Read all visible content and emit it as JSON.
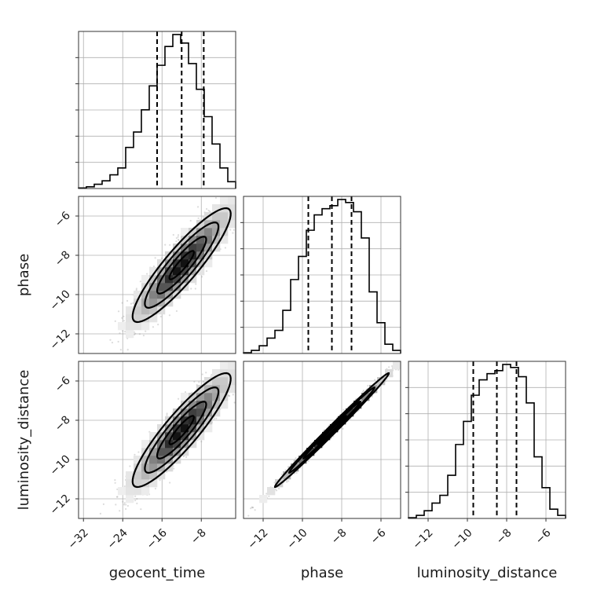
{
  "chart_data": {
    "type": "corner",
    "parameters": [
      "geocent_time",
      "phase",
      "luminosity_distance"
    ],
    "axis_labels": {
      "x": [
        "geocent_time",
        "phase",
        "luminosity_distance"
      ],
      "y": [
        "",
        "phase",
        "luminosity_distance"
      ]
    },
    "ranges": {
      "geocent_time": [
        -33,
        -1
      ],
      "phase": [
        -13,
        -5
      ],
      "luminosity_distance": [
        -13,
        -5
      ]
    },
    "ticks": {
      "geocent_time": [
        -32,
        -24,
        -16,
        -8
      ],
      "phase": [
        -12,
        -10,
        -8,
        -6
      ],
      "luminosity_distance": [
        -12,
        -10,
        -8,
        -6
      ]
    },
    "tick_labels": {
      "geocent_time": [
        "−32",
        "−24",
        "−16",
        "−8"
      ],
      "phase": [
        "−12",
        "−10",
        "−8",
        "−6"
      ],
      "luminosity_distance": [
        "−12",
        "−10",
        "−8",
        "−6"
      ]
    },
    "grid": true,
    "quantiles": {
      "geocent_time": [
        -17,
        -12,
        -7.5
      ],
      "phase": [
        -9.7,
        -8.5,
        -7.5
      ],
      "luminosity_distance": [
        -9.7,
        -8.5,
        -7.5
      ]
    },
    "histograms": {
      "geocent_time": {
        "bin_edges": [
          -33,
          -31.4,
          -29.8,
          -28.2,
          -26.6,
          -25,
          -23.4,
          -21.8,
          -20.2,
          -18.6,
          -17,
          -15.4,
          -13.8,
          -12.2,
          -10.6,
          -9,
          -7.4,
          -5.8,
          -4.2,
          -2.6,
          -1
        ],
        "counts": [
          0.3,
          1,
          2.5,
          4.5,
          8,
          12,
          24,
          33,
          46,
          60,
          72,
          83,
          90,
          85,
          73,
          58,
          42,
          26,
          12,
          4
        ]
      },
      "phase": {
        "bin_edges": [
          -13,
          -12.6,
          -12.2,
          -11.8,
          -11.4,
          -11,
          -10.6,
          -10.2,
          -9.8,
          -9.4,
          -9,
          -8.6,
          -8.2,
          -7.8,
          -7.4,
          -7,
          -6.6,
          -6.2,
          -5.8,
          -5.4,
          -5
        ],
        "counts": [
          0.5,
          2,
          5,
          10,
          15,
          28,
          48,
          63,
          80,
          90,
          94,
          96,
          100,
          98,
          92,
          75,
          40,
          20,
          6,
          2
        ]
      },
      "luminosity_distance": {
        "bin_edges": [
          -13,
          -12.6,
          -12.2,
          -11.8,
          -11.4,
          -11,
          -10.6,
          -10.2,
          -9.8,
          -9.4,
          -9,
          -8.6,
          -8.2,
          -7.8,
          -7.4,
          -7,
          -6.6,
          -6.2,
          -5.8,
          -5.4,
          -5
        ],
        "counts": [
          0.5,
          2,
          5,
          10,
          15,
          28,
          48,
          63,
          80,
          90,
          94,
          96,
          100,
          98,
          92,
          75,
          40,
          20,
          6,
          2
        ]
      }
    },
    "pairs": [
      {
        "x": "geocent_time",
        "y": "phase",
        "center": [
          -12,
          -8.5
        ],
        "sigma": [
          5,
          1.45
        ],
        "rho": 0.9,
        "levels_sigma": [
          0.5,
          1,
          1.5,
          2
        ]
      },
      {
        "x": "geocent_time",
        "y": "luminosity_distance",
        "center": [
          -12,
          -8.5
        ],
        "sigma": [
          5,
          1.45
        ],
        "rho": 0.9,
        "levels_sigma": [
          0.5,
          1,
          1.5,
          2
        ]
      },
      {
        "x": "phase",
        "y": "luminosity_distance",
        "center": [
          -8.5,
          -8.5
        ],
        "sigma": [
          1.45,
          1.45
        ],
        "rho": 0.995,
        "levels_sigma": [
          0.5,
          1,
          1.5,
          2
        ]
      }
    ],
    "colors": {
      "line": "#000000",
      "points": "#9a9a9a",
      "grid": "#b0b0b0"
    }
  }
}
